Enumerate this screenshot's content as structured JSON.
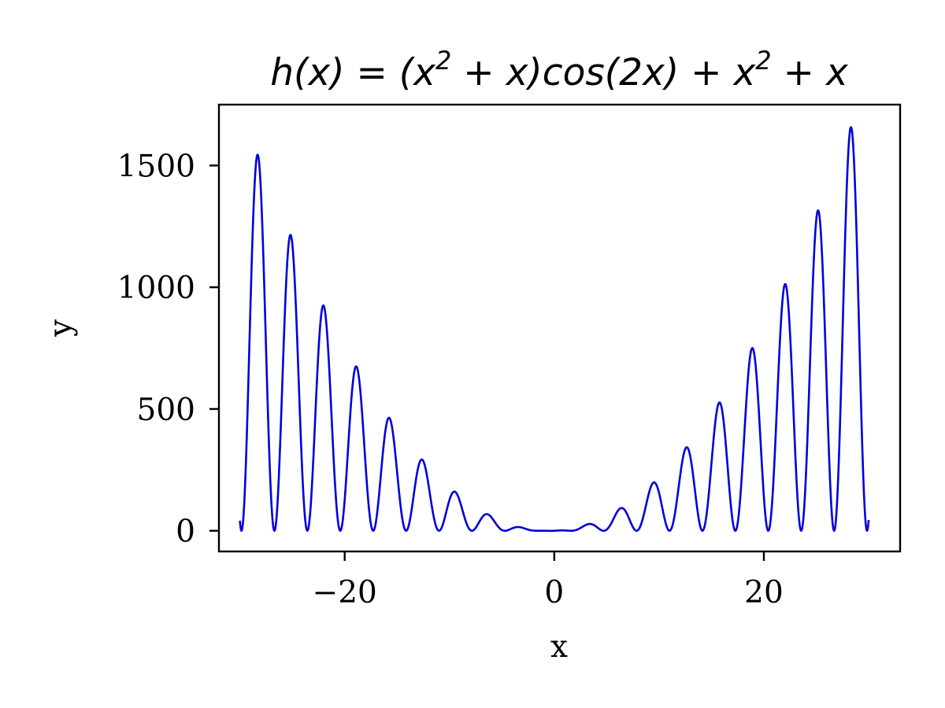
{
  "chart_data": {
    "type": "line",
    "title": {
      "lead": "h(x) = (x",
      "exp1": "2",
      "mid": " + x)cos(2x) + x",
      "exp2": "2",
      "tail": " + x"
    },
    "function": "(x^2 + x)*cos(2x) + x^2 + x",
    "xlabel": "x",
    "ylabel": "y",
    "xlim": [
      -32,
      33
    ],
    "ylim": [
      -85,
      1750
    ],
    "x_range": [
      -30,
      30
    ],
    "x_ticks": [
      {
        "value": -20,
        "label": "−20"
      },
      {
        "value": 0,
        "label": "0"
      },
      {
        "value": 20,
        "label": "20"
      }
    ],
    "y_ticks": [
      {
        "value": 0,
        "label": "0"
      },
      {
        "value": 500,
        "label": "500"
      },
      {
        "value": 1000,
        "label": "1000"
      },
      {
        "value": 1500,
        "label": "1500"
      }
    ],
    "grid": false,
    "legend": "none",
    "series": [
      {
        "color": "#0000dd",
        "samples": 2000
      }
    ]
  }
}
